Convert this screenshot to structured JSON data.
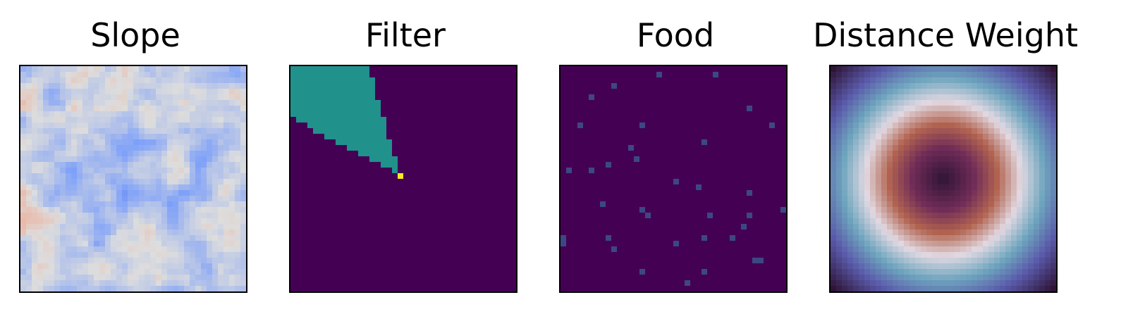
{
  "chart_data": [
    {
      "type": "heatmap",
      "title": "Slope",
      "grid_size": 40,
      "colormap": "coolwarm",
      "axes_visible": false,
      "description_hint": "slope field, mostly blue with light/cream ridges and a few pale orange patches",
      "cells": []
    },
    {
      "type": "heatmap",
      "title": "Filter",
      "grid_size": 40,
      "colormap": "viridis",
      "axes_visible": false,
      "background_value": 0.0,
      "wedge_value": 0.5,
      "agent_value": 1.0,
      "agent_cell": [
        19,
        19
      ],
      "wedge_direction": "up-left"
    },
    {
      "type": "heatmap",
      "title": "Food",
      "grid_size": 40,
      "colormap": "viridis",
      "axes_visible": false,
      "background_value": 0.0,
      "food_cells": [
        [
          17,
          1
        ],
        [
          27,
          1
        ],
        [
          5,
          5
        ],
        [
          9,
          3
        ],
        [
          33,
          7
        ],
        [
          3,
          10
        ],
        [
          14,
          10
        ],
        [
          25,
          13
        ],
        [
          37,
          10
        ],
        [
          12,
          14
        ],
        [
          13,
          16
        ],
        [
          8,
          17
        ],
        [
          5,
          18
        ],
        [
          1,
          18
        ],
        [
          20,
          20
        ],
        [
          24,
          21
        ],
        [
          33,
          22
        ],
        [
          7,
          24
        ],
        [
          14,
          25
        ],
        [
          33,
          26
        ],
        [
          39,
          25
        ],
        [
          26,
          26
        ],
        [
          15,
          26
        ],
        [
          32,
          28
        ],
        [
          8,
          30
        ],
        [
          25,
          30
        ],
        [
          30,
          30
        ],
        [
          0,
          30
        ],
        [
          20,
          31
        ],
        [
          0,
          31
        ],
        [
          9,
          32
        ],
        [
          14,
          36
        ],
        [
          25,
          36
        ],
        [
          34,
          34
        ],
        [
          35,
          34
        ],
        [
          22,
          38
        ]
      ],
      "food_value": 0.22
    },
    {
      "type": "heatmap",
      "title": "Distance Weight",
      "grid_size": 40,
      "colormap": "twilight_shifted",
      "axes_visible": false,
      "center_cell": [
        19.5,
        19.5
      ]
    }
  ]
}
